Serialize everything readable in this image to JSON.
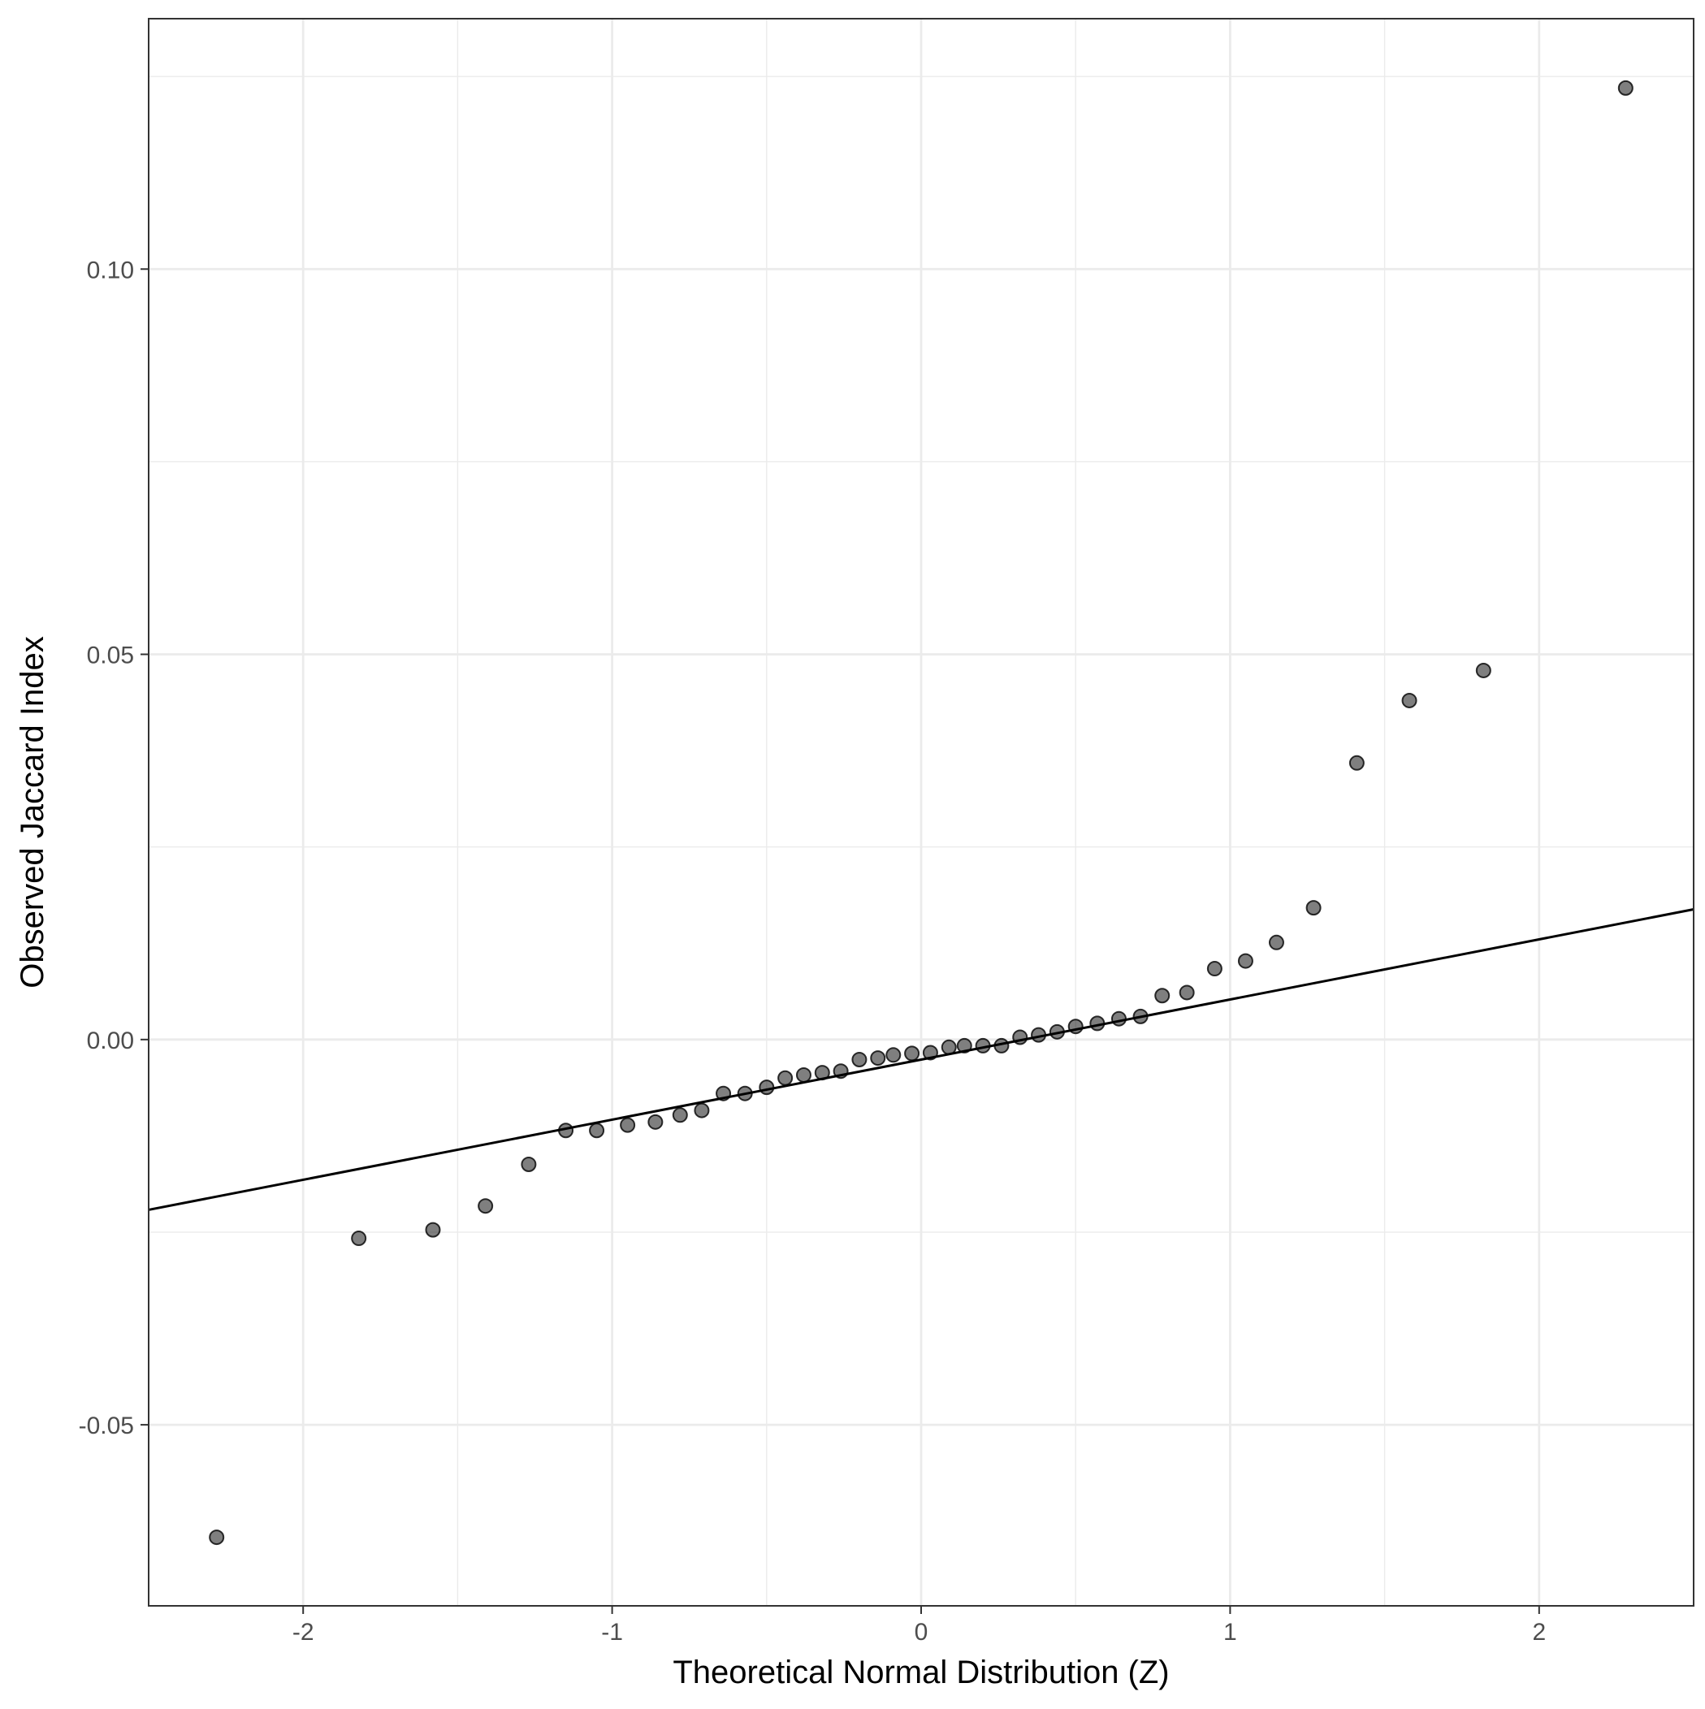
{
  "chart_data": {
    "type": "scatter",
    "xlabel": "Theoretical Normal Distribution (Z)",
    "ylabel": "Observed Jaccard Index",
    "xlim": [
      -2.5,
      2.5
    ],
    "ylim": [
      -0.0735,
      0.1325
    ],
    "x_ticks": [
      -2,
      -1,
      0,
      1,
      2
    ],
    "x_tick_labels": [
      "-2",
      "-1",
      "0",
      "1",
      "2"
    ],
    "y_ticks": [
      -0.05,
      0.0,
      0.05,
      0.1
    ],
    "y_tick_labels": [
      "-0.05",
      "0.00",
      "0.05",
      "0.10"
    ],
    "x_minor_ticks": [
      -1.5,
      -0.5,
      0.5,
      1.5
    ],
    "y_minor_ticks": [
      -0.025,
      0.025,
      0.075,
      0.125
    ],
    "grid": true,
    "theme": "bw",
    "point_color": "#000000",
    "point_alpha": 0.5,
    "points": {
      "x": [
        -2.28,
        -1.82,
        -1.58,
        -1.41,
        -1.27,
        -1.15,
        -1.05,
        -0.95,
        -0.86,
        -0.78,
        -0.71,
        -0.64,
        -0.57,
        -0.5,
        -0.44,
        -0.38,
        -0.32,
        -0.26,
        -0.2,
        -0.14,
        -0.09,
        -0.03,
        0.03,
        0.09,
        0.14,
        0.2,
        0.26,
        0.32,
        0.38,
        0.44,
        0.5,
        0.57,
        0.64,
        0.71,
        0.78,
        0.86,
        0.95,
        1.05,
        1.15,
        1.27,
        1.41,
        1.58,
        1.82,
        2.28
      ],
      "y": [
        -0.0646,
        -0.0258,
        -0.0247,
        -0.0216,
        -0.0162,
        -0.0118,
        -0.0118,
        -0.0111,
        -0.0107,
        -0.0098,
        -0.0092,
        -0.007,
        -0.007,
        -0.0062,
        -0.005,
        -0.0046,
        -0.0043,
        -0.0041,
        -0.0026,
        -0.0024,
        -0.002,
        -0.0018,
        -0.0017,
        -0.001,
        -0.0008,
        -0.0008,
        -0.0008,
        0.0003,
        0.0006,
        0.001,
        0.0017,
        0.0021,
        0.0027,
        0.003,
        0.0057,
        0.0061,
        0.0092,
        0.0102,
        0.0126,
        0.0171,
        0.0359,
        0.044,
        0.0479,
        0.1235
      ]
    },
    "reference_line": {
      "slope": 0.0078,
      "intercept": -0.0026
    }
  }
}
